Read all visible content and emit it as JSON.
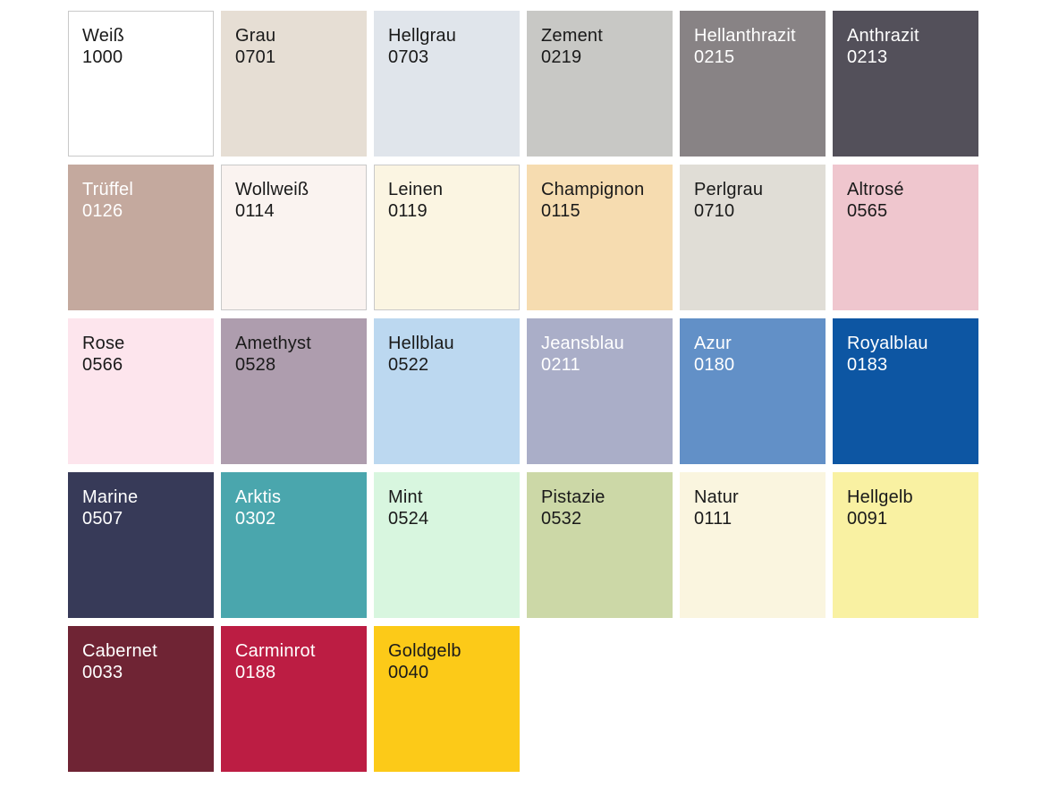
{
  "palette": {
    "text_dark": "#1a1a1a",
    "text_light": "#ffffff",
    "swatch_border_color": "#c9c9c9",
    "columns": 6,
    "swatches": [
      {
        "name": "Weiß",
        "code": "1000",
        "bg": "#ffffff",
        "text": "dark",
        "bordered": true
      },
      {
        "name": "Grau",
        "code": "0701",
        "bg": "#e6ded4",
        "text": "dark",
        "bordered": false
      },
      {
        "name": "Hellgrau",
        "code": "0703",
        "bg": "#e0e5eb",
        "text": "dark",
        "bordered": false
      },
      {
        "name": "Zement",
        "code": "0219",
        "bg": "#c8c8c5",
        "text": "dark",
        "bordered": false
      },
      {
        "name": "Hellanthrazit",
        "code": "0215",
        "bg": "#888385",
        "text": "light",
        "bordered": false
      },
      {
        "name": "Anthrazit",
        "code": "0213",
        "bg": "#53505a",
        "text": "light",
        "bordered": false
      },
      {
        "name": "Trüffel",
        "code": "0126",
        "bg": "#c4a99e",
        "text": "light",
        "bordered": false
      },
      {
        "name": "Wollweiß",
        "code": "0114",
        "bg": "#faf3f0",
        "text": "dark",
        "bordered": true
      },
      {
        "name": "Leinen",
        "code": "0119",
        "bg": "#fbf5e2",
        "text": "dark",
        "bordered": true
      },
      {
        "name": "Champignon",
        "code": "0115",
        "bg": "#f6dcb0",
        "text": "dark",
        "bordered": false
      },
      {
        "name": "Perlgrau",
        "code": "0710",
        "bg": "#e0ddd6",
        "text": "dark",
        "bordered": false
      },
      {
        "name": "Altrosé",
        "code": "0565",
        "bg": "#efc6ce",
        "text": "dark",
        "bordered": false
      },
      {
        "name": "Rose",
        "code": "0566",
        "bg": "#fde5ed",
        "text": "dark",
        "bordered": false
      },
      {
        "name": "Amethyst",
        "code": "0528",
        "bg": "#ae9dae",
        "text": "dark",
        "bordered": false
      },
      {
        "name": "Hellblau",
        "code": "0522",
        "bg": "#bcd8f0",
        "text": "dark",
        "bordered": false
      },
      {
        "name": "Jeansblau",
        "code": "0211",
        "bg": "#aaaec8",
        "text": "light",
        "bordered": false
      },
      {
        "name": "Azur",
        "code": "0180",
        "bg": "#6290c7",
        "text": "light",
        "bordered": false
      },
      {
        "name": "Royalblau",
        "code": "0183",
        "bg": "#0d56a3",
        "text": "light",
        "bordered": false
      },
      {
        "name": "Marine",
        "code": "0507",
        "bg": "#373a58",
        "text": "light",
        "bordered": false
      },
      {
        "name": "Arktis",
        "code": "0302",
        "bg": "#4aa6ad",
        "text": "light",
        "bordered": false
      },
      {
        "name": "Mint",
        "code": "0524",
        "bg": "#d8f6df",
        "text": "dark",
        "bordered": false
      },
      {
        "name": "Pistazie",
        "code": "0532",
        "bg": "#ccd8a7",
        "text": "dark",
        "bordered": false
      },
      {
        "name": "Natur",
        "code": "0111",
        "bg": "#faf5df",
        "text": "dark",
        "bordered": false
      },
      {
        "name": "Hellgelb",
        "code": "0091",
        "bg": "#f9f1a2",
        "text": "dark",
        "bordered": false
      },
      {
        "name": "Cabernet",
        "code": "0033",
        "bg": "#6f2434",
        "text": "light",
        "bordered": false
      },
      {
        "name": "Carminrot",
        "code": "0188",
        "bg": "#bc1d43",
        "text": "light",
        "bordered": false
      },
      {
        "name": "Goldgelb",
        "code": "0040",
        "bg": "#fcca18",
        "text": "dark",
        "bordered": false
      }
    ]
  }
}
